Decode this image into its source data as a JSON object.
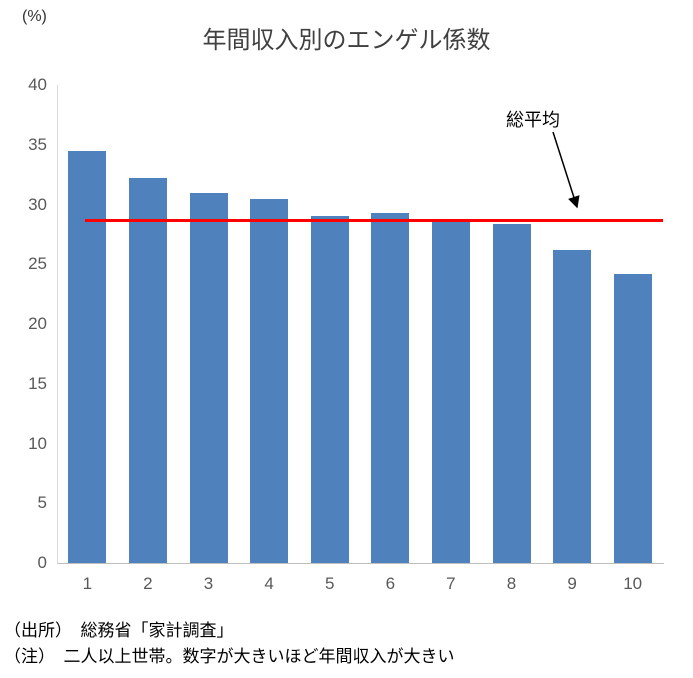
{
  "chart_data": {
    "type": "bar",
    "title": "年間収入別のエンゲル係数",
    "unit_label": "(%)",
    "categories": [
      "1",
      "2",
      "3",
      "4",
      "5",
      "6",
      "7",
      "8",
      "9",
      "10"
    ],
    "values": [
      34.5,
      32.2,
      31.0,
      30.5,
      29.0,
      29.3,
      28.8,
      28.4,
      26.2,
      24.2
    ],
    "bar_color": "#4f81bd",
    "ylim": [
      0,
      40
    ],
    "yticks": [
      0,
      5,
      10,
      15,
      20,
      25,
      30,
      35,
      40
    ],
    "xlabel": "",
    "ylabel": "(%)",
    "grid": false,
    "legend": "none",
    "average_line": {
      "label": "総平均",
      "value": 28.7,
      "color": "#ff0000"
    }
  },
  "notes": {
    "source": "（出所）　総務省「家計調査」",
    "note": "（注）　二人以上世帯。数字が大きいほど年間収入が大きい"
  }
}
